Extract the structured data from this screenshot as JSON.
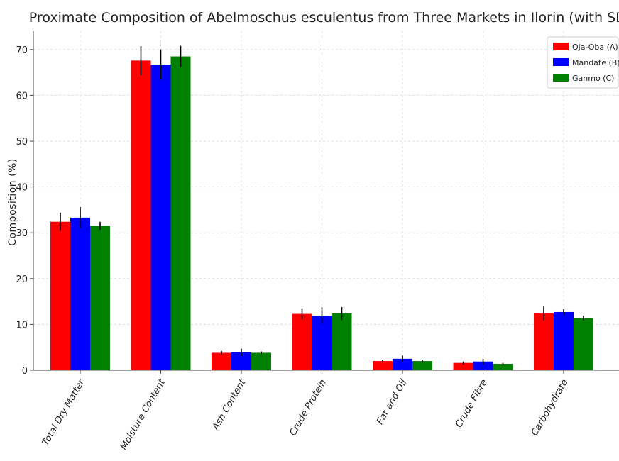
{
  "chart_data": {
    "type": "bar",
    "title": "Proximate Composition of Abelmoschus esculentus from Three Markets in Ilorin (with SD)",
    "xlabel": "",
    "ylabel": "Composition (%)",
    "ylim": [
      0,
      74
    ],
    "yticks": [
      0,
      10,
      20,
      30,
      40,
      50,
      60,
      70
    ],
    "grid": true,
    "legend_position": "top-right",
    "categories": [
      "Total Dry Matter",
      "Moisture Content",
      "Ash Content",
      "Crude Protein",
      "Fat and Oil",
      "Crude Fibre",
      "Carbohydrate"
    ],
    "series": [
      {
        "name": "Oja-Oba (A)",
        "color": "#ff0000",
        "values": [
          32.4,
          67.6,
          3.8,
          12.3,
          2.0,
          1.6,
          12.4
        ],
        "errors": [
          2.0,
          3.2,
          0.4,
          1.2,
          0.3,
          0.3,
          1.5
        ]
      },
      {
        "name": "Mandate (B)",
        "color": "#0000ff",
        "values": [
          33.3,
          66.7,
          3.9,
          11.9,
          2.5,
          1.9,
          12.7
        ],
        "errors": [
          2.3,
          3.3,
          0.8,
          1.8,
          0.7,
          0.6,
          0.6
        ]
      },
      {
        "name": "Ganmo (C)",
        "color": "#008000",
        "values": [
          31.5,
          68.5,
          3.8,
          12.4,
          2.0,
          1.4,
          11.4
        ],
        "errors": [
          0.9,
          2.3,
          0.3,
          1.4,
          0.3,
          0.2,
          0.5
        ]
      }
    ]
  }
}
